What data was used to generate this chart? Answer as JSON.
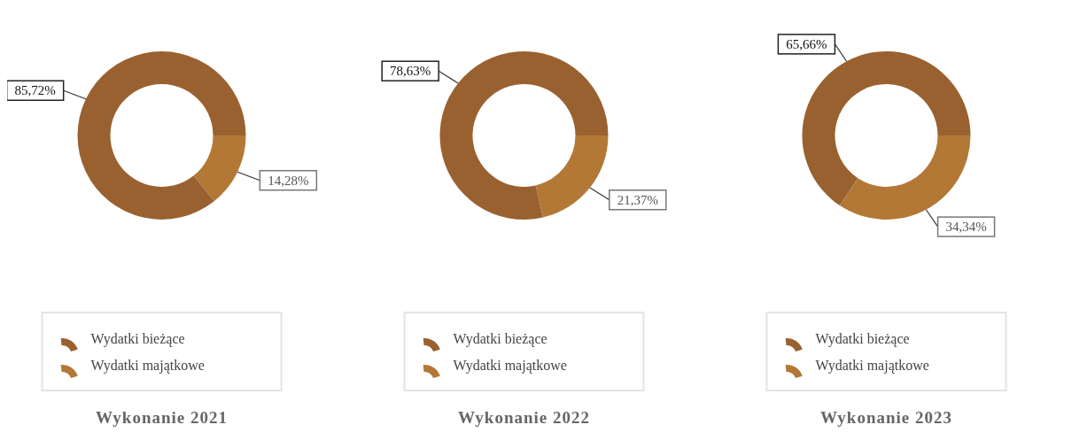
{
  "chart_data": [
    {
      "type": "donut",
      "title": "Wykonanie 2021",
      "categories": [
        "Wydatki bieżące",
        "Wydatki majątkowe"
      ],
      "values": [
        85.72,
        14.28
      ],
      "value_labels": [
        "85,72%",
        "14,28%"
      ],
      "colors": [
        "#9a6130",
        "#b37836"
      ],
      "legend": "bottom"
    },
    {
      "type": "donut",
      "title": "Wykonanie 2022",
      "categories": [
        "Wydatki bieżące",
        "Wydatki majątkowe"
      ],
      "values": [
        78.63,
        21.37
      ],
      "value_labels": [
        "78,63%",
        "21,37%"
      ],
      "colors": [
        "#9a6130",
        "#b37836"
      ],
      "legend": "bottom"
    },
    {
      "type": "donut",
      "title": "Wykonanie 2023",
      "categories": [
        "Wydatki bieżące",
        "Wydatki majątkowe"
      ],
      "values": [
        65.66,
        34.34
      ],
      "value_labels": [
        "65,66%",
        "34,34%"
      ],
      "colors": [
        "#9a6130",
        "#b37836"
      ],
      "legend": "bottom"
    }
  ]
}
